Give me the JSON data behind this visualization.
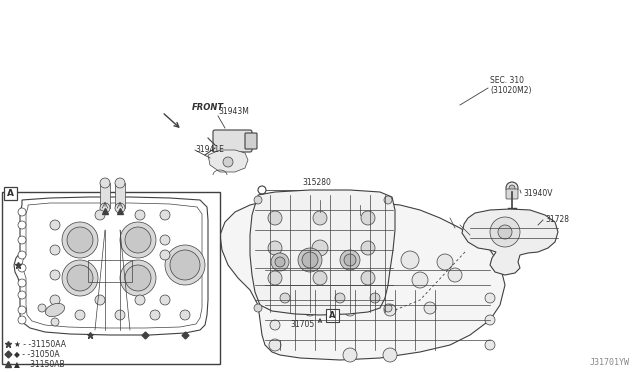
{
  "bg_color": "#ffffff",
  "fig_width": 6.4,
  "fig_height": 3.72,
  "dpi": 100,
  "labels": {
    "front": "FRONT",
    "sec310_line1": "SEC. 310",
    "sec310_line2": "(31020M2)",
    "part_31943M": "31943M",
    "part_31941E": "31941E",
    "part_315280": "315280",
    "part_31705": "31705",
    "part_31940V": "31940V",
    "part_31728": "31728",
    "legend_star": "★ - -31150AA",
    "legend_diamond": "◆ - -31050A",
    "legend_triangle": "▲ - -31150AB",
    "watermark": "J31701YW"
  },
  "colors": {
    "line": "#404040",
    "text": "#303030",
    "bg": "#ffffff",
    "fill_light": "#f0f0f0",
    "fill_medium": "#d8d8d8"
  }
}
